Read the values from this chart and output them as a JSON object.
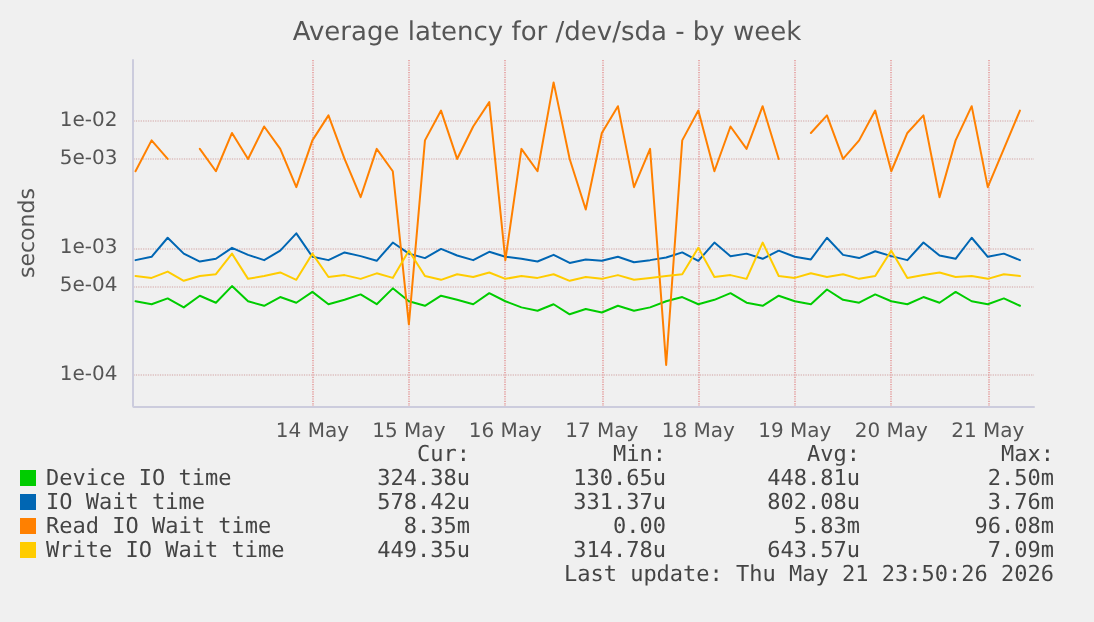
{
  "chart_data": {
    "type": "line",
    "title": "Average latency for /dev/sda - by week",
    "ylabel": "seconds",
    "x": [
      "2026-05-12T16:00",
      "2026-05-12T20:00",
      "2026-05-13T00:00",
      "2026-05-13T04:00",
      "2026-05-13T08:00",
      "2026-05-13T12:00",
      "2026-05-13T16:00",
      "2026-05-13T20:00",
      "2026-05-14T00:00",
      "2026-05-14T04:00",
      "2026-05-14T08:00",
      "2026-05-14T12:00",
      "2026-05-14T16:00",
      "2026-05-14T20:00",
      "2026-05-15T00:00",
      "2026-05-15T04:00",
      "2026-05-15T08:00",
      "2026-05-15T12:00",
      "2026-05-15T16:00",
      "2026-05-15T20:00",
      "2026-05-16T00:00",
      "2026-05-16T04:00",
      "2026-05-16T08:00",
      "2026-05-16T12:00",
      "2026-05-16T16:00",
      "2026-05-16T20:00",
      "2026-05-17T00:00",
      "2026-05-17T04:00",
      "2026-05-17T08:00",
      "2026-05-17T12:00",
      "2026-05-17T16:00",
      "2026-05-17T20:00",
      "2026-05-18T00:00",
      "2026-05-18T04:00",
      "2026-05-18T08:00",
      "2026-05-18T12:00",
      "2026-05-18T16:00",
      "2026-05-18T20:00",
      "2026-05-19T00:00",
      "2026-05-19T04:00",
      "2026-05-19T08:00",
      "2026-05-19T12:00",
      "2026-05-19T16:00",
      "2026-05-19T20:00",
      "2026-05-20T00:00",
      "2026-05-20T04:00",
      "2026-05-20T08:00",
      "2026-05-20T12:00",
      "2026-05-20T16:00",
      "2026-05-20T20:00",
      "2026-05-21T00:00",
      "2026-05-21T04:00",
      "2026-05-21T08:00",
      "2026-05-21T12:00",
      "2026-05-21T16:00",
      "2026-05-21T20:00"
    ],
    "series": [
      {
        "name": "Device IO time",
        "color": "#00cc00",
        "values": [
          0.00038,
          0.00036,
          0.0004,
          0.00034,
          0.00042,
          0.00037,
          0.0005,
          0.00038,
          0.00035,
          0.00041,
          0.00037,
          0.00045,
          0.00036,
          0.00039,
          0.00043,
          0.00036,
          0.00048,
          0.00038,
          0.00035,
          0.00042,
          0.00039,
          0.00036,
          0.00044,
          0.00038,
          0.00034,
          0.00032,
          0.00036,
          0.0003,
          0.00033,
          0.00031,
          0.00035,
          0.00032,
          0.00034,
          0.00038,
          0.00041,
          0.00036,
          0.00039,
          0.00044,
          0.00037,
          0.00035,
          0.00042,
          0.00038,
          0.00036,
          0.00047,
          0.00039,
          0.00037,
          0.00043,
          0.00038,
          0.00036,
          0.00041,
          0.00037,
          0.00045,
          0.00038,
          0.00036,
          0.0004,
          0.00035
        ]
      },
      {
        "name": "IO Wait time",
        "color": "#0066b3",
        "values": [
          0.0008,
          0.00085,
          0.0012,
          0.0009,
          0.00078,
          0.00082,
          0.001,
          0.00088,
          0.0008,
          0.00095,
          0.0013,
          0.00085,
          0.0008,
          0.00092,
          0.00086,
          0.00079,
          0.0011,
          0.0009,
          0.00083,
          0.00098,
          0.00087,
          0.0008,
          0.00093,
          0.00085,
          0.00082,
          0.00078,
          0.00088,
          0.00076,
          0.00081,
          0.00079,
          0.00085,
          0.00077,
          0.0008,
          0.00084,
          0.00092,
          0.00079,
          0.0011,
          0.00086,
          0.0009,
          0.00082,
          0.00095,
          0.00085,
          0.00081,
          0.0012,
          0.00088,
          0.00083,
          0.00094,
          0.00086,
          0.0008,
          0.0011,
          0.00087,
          0.00082,
          0.0012,
          0.00085,
          0.0009,
          0.0008
        ]
      },
      {
        "name": "Read IO Wait time",
        "color": "#ff8000",
        "values": [
          0.004,
          0.007,
          0.005,
          null,
          0.006,
          0.004,
          0.008,
          0.005,
          0.009,
          0.006,
          0.003,
          0.007,
          0.011,
          0.005,
          0.0025,
          0.006,
          0.004,
          0.00025,
          0.007,
          0.012,
          0.005,
          0.009,
          0.014,
          0.0008,
          0.006,
          0.004,
          0.02,
          0.005,
          0.002,
          0.008,
          0.013,
          0.003,
          0.006,
          0.00012,
          0.007,
          0.012,
          0.004,
          0.009,
          0.006,
          0.013,
          0.005,
          null,
          0.008,
          0.011,
          0.005,
          0.007,
          0.012,
          0.004,
          0.008,
          0.011,
          0.0025,
          0.007,
          0.013,
          0.003,
          0.006,
          0.012
        ]
      },
      {
        "name": "Write IO Wait time",
        "color": "#ffcc00",
        "values": [
          0.0006,
          0.00058,
          0.00065,
          0.00055,
          0.0006,
          0.00062,
          0.0009,
          0.00057,
          0.0006,
          0.00064,
          0.00056,
          0.0009,
          0.00059,
          0.00061,
          0.00057,
          0.00063,
          0.00058,
          0.00095,
          0.0006,
          0.00056,
          0.00062,
          0.00059,
          0.00064,
          0.00057,
          0.0006,
          0.00058,
          0.00062,
          0.00055,
          0.00059,
          0.00057,
          0.00061,
          0.00056,
          0.00058,
          0.0006,
          0.00062,
          0.001,
          0.00059,
          0.00061,
          0.00057,
          0.0011,
          0.0006,
          0.00058,
          0.00063,
          0.00059,
          0.00062,
          0.00057,
          0.0006,
          0.00095,
          0.00058,
          0.00061,
          0.00064,
          0.00059,
          0.0006,
          0.00057,
          0.00062,
          0.0006
        ]
      }
    ],
    "log": "y",
    "xlim": [
      "2026-05-12T15:30",
      "2026-05-21T23:30"
    ],
    "xticks": [
      {
        "value": "2026-05-14T12:00",
        "label": "14 May"
      },
      {
        "value": "2026-05-15T12:00",
        "label": "15 May"
      },
      {
        "value": "2026-05-16T12:00",
        "label": "16 May"
      },
      {
        "value": "2026-05-17T12:00",
        "label": "17 May"
      },
      {
        "value": "2026-05-18T12:00",
        "label": "18 May"
      },
      {
        "value": "2026-05-19T12:00",
        "label": "19 May"
      },
      {
        "value": "2026-05-20T12:00",
        "label": "20 May"
      },
      {
        "value": "2026-05-21T12:00",
        "label": "21 May"
      }
    ],
    "ylim": [
      5.7e-05,
      0.03
    ],
    "yticks": [
      {
        "value": 0.0001,
        "label": "1e-04"
      },
      {
        "value": 0.0005,
        "label": "5e-04"
      },
      {
        "value": 0.001,
        "label": "1e-03"
      },
      {
        "value": 0.005,
        "label": "5e-03"
      },
      {
        "value": 0.01,
        "label": "1e-02"
      }
    ],
    "grid": true,
    "legend": "bottom left",
    "marker": "none",
    "line_style": "solid",
    "annotations": [
      "Cur:",
      "Min:",
      "Avg:",
      "Max:",
      "324.38u",
      "130.65u",
      "448.81u",
      "2.50m",
      "578.42u",
      "331.37u",
      "802.08u",
      "3.76m",
      "8.35m",
      "0.00",
      "5.83m",
      "96.08m",
      "449.35u",
      "314.78u",
      "643.57u",
      "7.09m",
      "Last update: Thu May 21 23:50:26 2026"
    ]
  }
}
